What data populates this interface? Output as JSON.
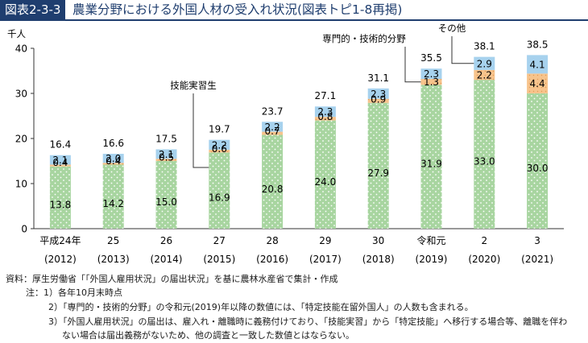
{
  "header": {
    "figure_label": "図表2-3-3",
    "title": "農業分野における外国人材の受入れ状況(図表トピ1-8再掲)"
  },
  "chart_data": {
    "type": "bar",
    "stacked": true,
    "ylabel": "千人",
    "ylim": [
      0,
      40
    ],
    "yticks": [
      0,
      10,
      20,
      30,
      40
    ],
    "grid": false,
    "categories": [
      "平成24年",
      "25",
      "26",
      "27",
      "28",
      "29",
      "30",
      "令和元",
      "2",
      "3"
    ],
    "categories_sub": [
      "(2012)",
      "(2013)",
      "(2014)",
      "(2015)",
      "(2016)",
      "(2017)",
      "(2018)",
      "(2019)",
      "(2020)",
      "(2021)"
    ],
    "series": [
      {
        "name": "技能実習生",
        "color": "#a8d5a0",
        "values": [
          13.8,
          14.2,
          15.0,
          16.9,
          20.8,
          24.0,
          27.9,
          31.9,
          33.0,
          30.0
        ]
      },
      {
        "name": "専門的・技術的分野",
        "color": "#f7c48d",
        "values": [
          0.4,
          0.4,
          0.5,
          0.6,
          0.7,
          0.8,
          0.9,
          1.3,
          2.2,
          4.4
        ]
      },
      {
        "name": "その他",
        "color": "#a7d2ee",
        "values": [
          2.1,
          2.0,
          2.1,
          2.2,
          2.2,
          2.3,
          2.3,
          2.3,
          2.9,
          4.1
        ]
      }
    ],
    "value_labels": [
      [
        "13.8",
        "14.2",
        "15.0",
        "16.9",
        "20.8",
        "24.0",
        "27.9",
        "31.9",
        "33.0",
        "30.0"
      ],
      [
        "0.4",
        "0.4",
        "0.5",
        "0.6",
        "0.7",
        "0.8",
        "0.9",
        "1.3",
        "2.2",
        "4.4"
      ],
      [
        "2.1",
        "2.0",
        "2.1",
        "2.2",
        "2.2",
        "2.3",
        "2.3",
        "2.3",
        "2.9",
        "4.1"
      ]
    ],
    "totals": [
      "16.4",
      "16.6",
      "17.5",
      "19.7",
      "23.7",
      "27.1",
      "31.1",
      "35.5",
      "38.1",
      "38.5"
    ]
  },
  "notes": {
    "source": "資料：厚生労働省「｢外国人雇用状況」の届出状況」を基に農林水産省で集計・作成",
    "note1": "注：1）各年10月末時点",
    "note2": "2）「専門的・技術的分野」の令和元(2019)年以降の数値には、「特定技能在留外国人」の人数も含まれる。",
    "note3a": "3）「外国人雇用状況」の届出は、雇入れ・離職時に義務付けており、「技能実習」から「特定技能」へ移行する場合等、離職を伴わ",
    "note3b": "ない場合は届出義務がないため、他の調査と一致した数値とはならない。"
  }
}
